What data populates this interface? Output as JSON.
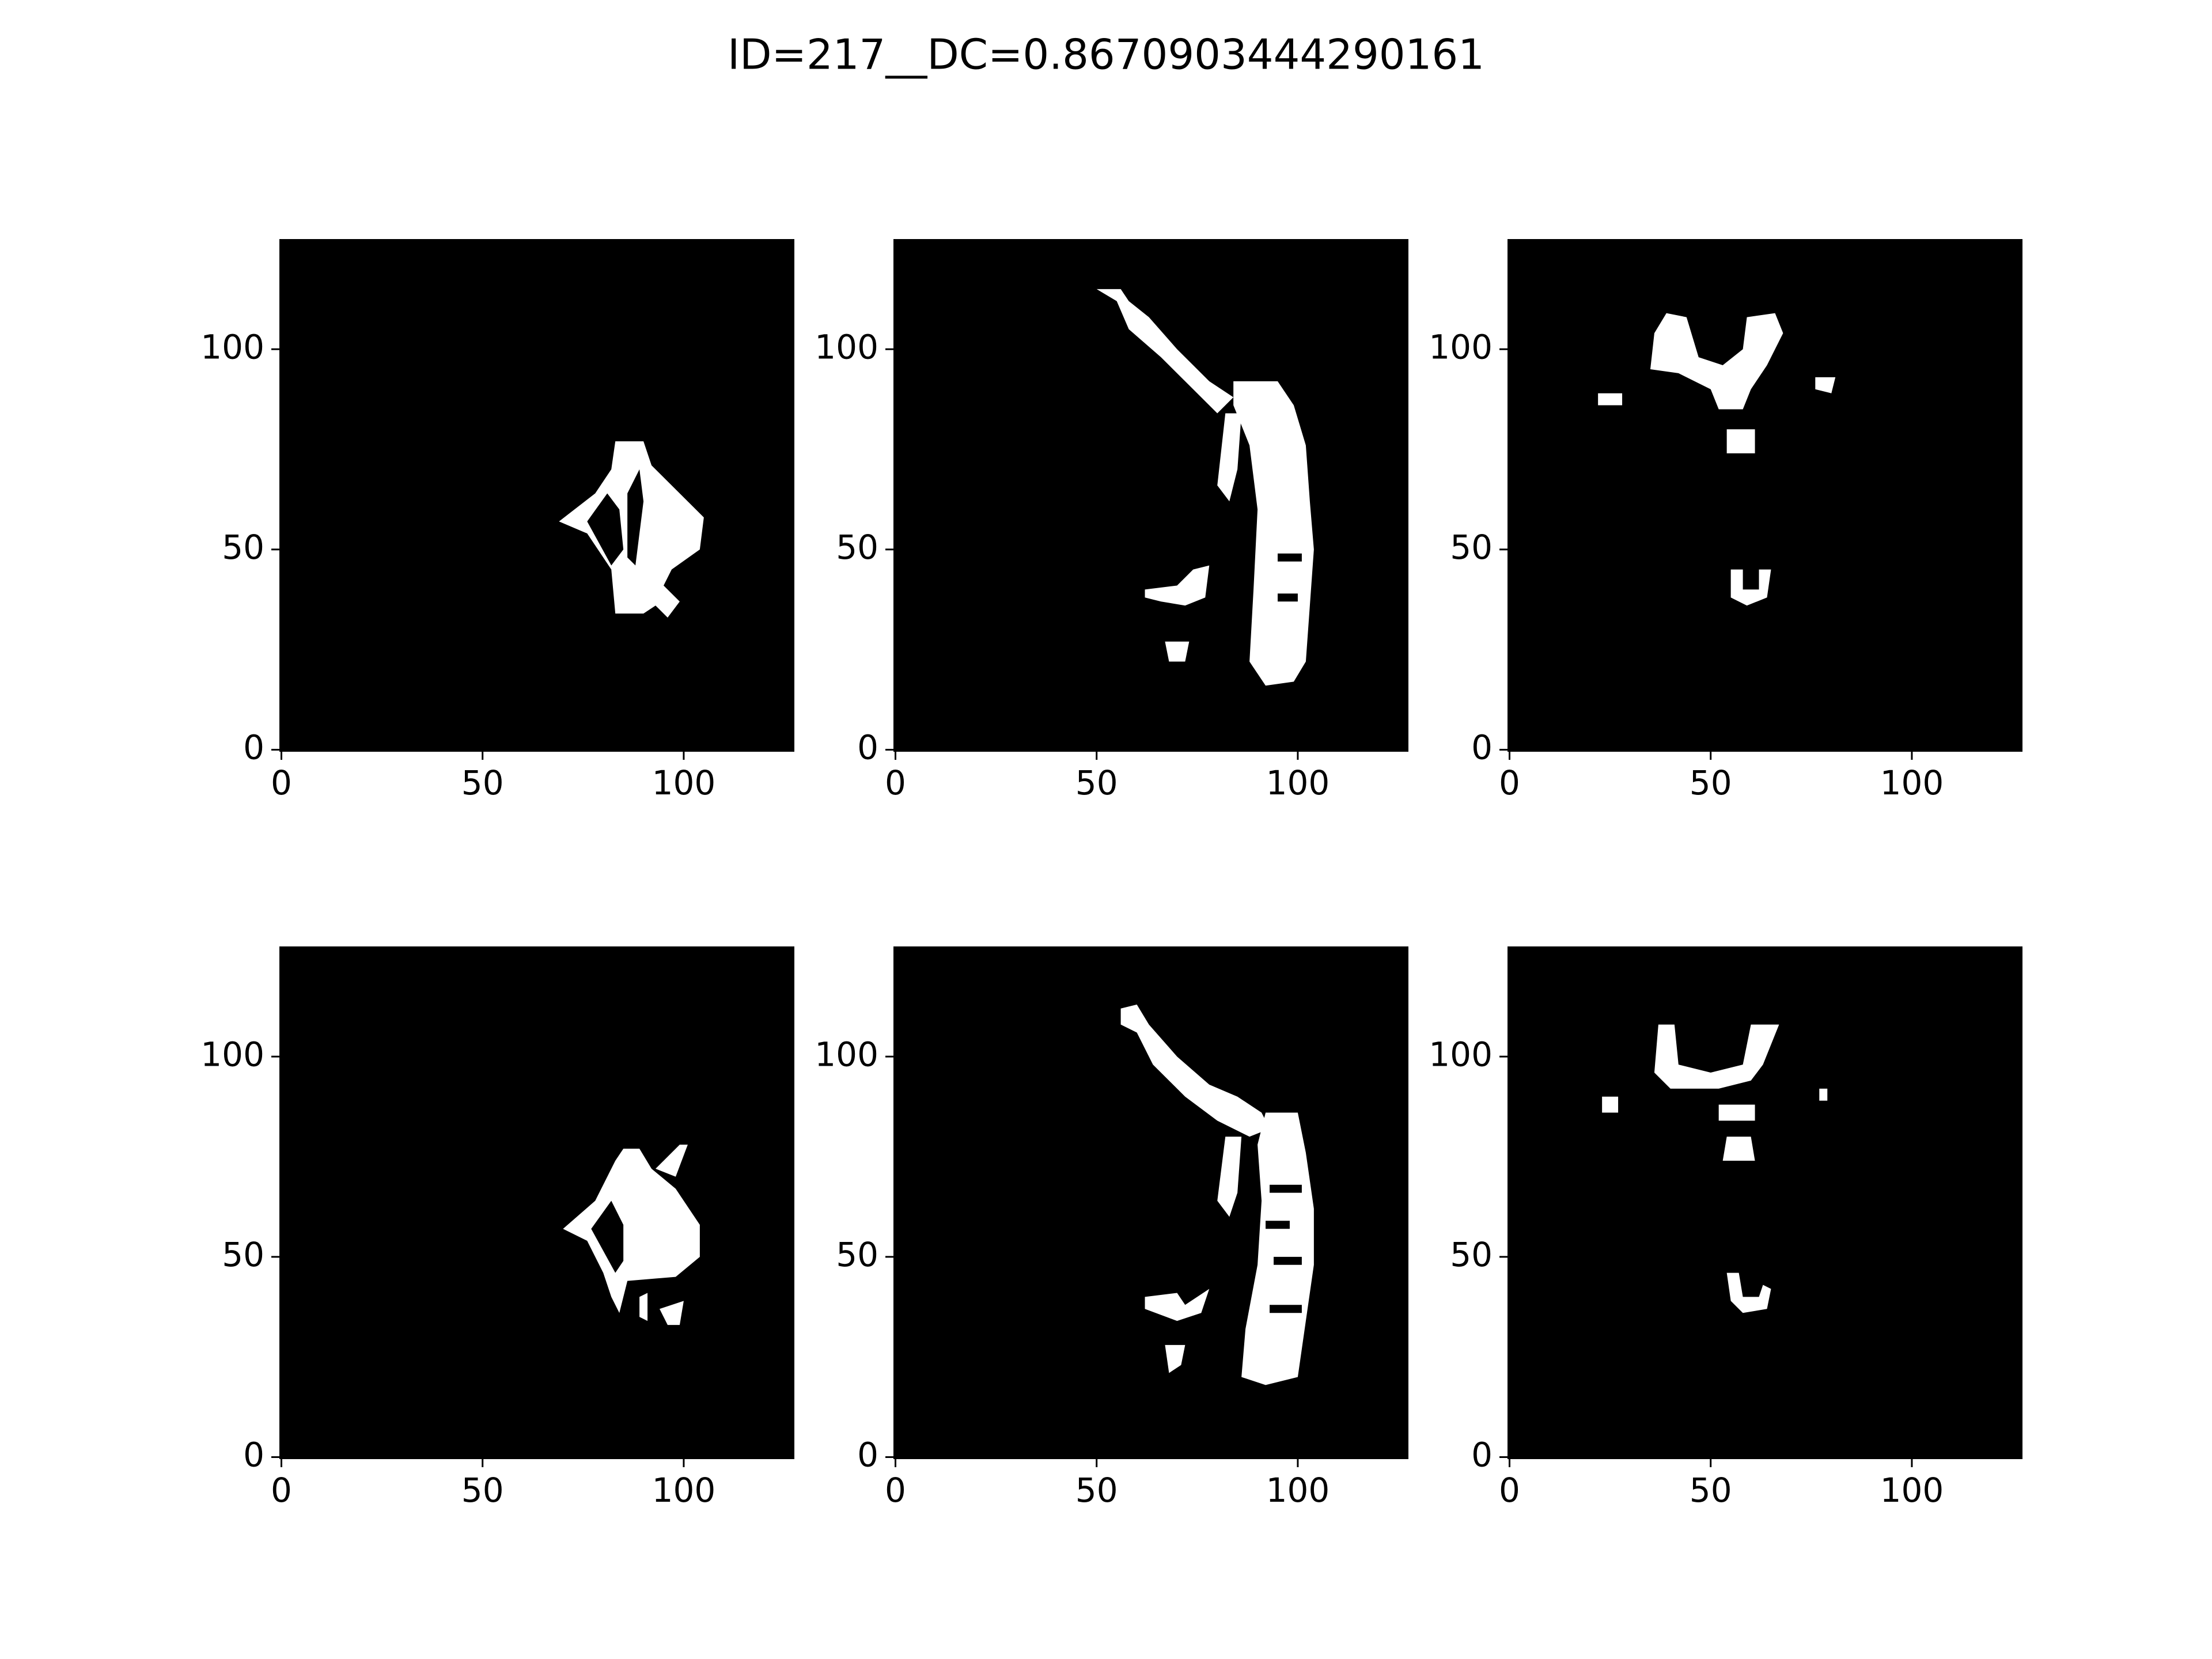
{
  "title": "ID=217__DC=0.8670903444290161",
  "chart_data": [
    {
      "type": "image",
      "xlim": [
        -0.5,
        127.5
      ],
      "ylim": [
        -0.5,
        127.5
      ],
      "xticks": [
        0,
        50,
        100
      ],
      "yticks": [
        0,
        50,
        100
      ]
    },
    {
      "type": "image",
      "xlim": [
        -0.5,
        127.5
      ],
      "ylim": [
        -0.5,
        127.5
      ],
      "xticks": [
        0,
        50,
        100
      ],
      "yticks": [
        0,
        50,
        100
      ]
    },
    {
      "type": "image",
      "xlim": [
        -0.5,
        127.5
      ],
      "ylim": [
        -0.5,
        127.5
      ],
      "xticks": [
        0,
        50,
        100
      ],
      "yticks": [
        0,
        50,
        100
      ]
    },
    {
      "type": "image",
      "xlim": [
        -0.5,
        127.5
      ],
      "ylim": [
        -0.5,
        127.5
      ],
      "xticks": [
        0,
        50,
        100
      ],
      "yticks": [
        0,
        50,
        100
      ]
    },
    {
      "type": "image",
      "xlim": [
        -0.5,
        127.5
      ],
      "ylim": [
        -0.5,
        127.5
      ],
      "xticks": [
        0,
        50,
        100
      ],
      "yticks": [
        0,
        50,
        100
      ]
    },
    {
      "type": "image",
      "xlim": [
        -0.5,
        127.5
      ],
      "ylim": [
        -0.5,
        127.5
      ],
      "xticks": [
        0,
        50,
        100
      ],
      "yticks": [
        0,
        50,
        100
      ]
    }
  ]
}
